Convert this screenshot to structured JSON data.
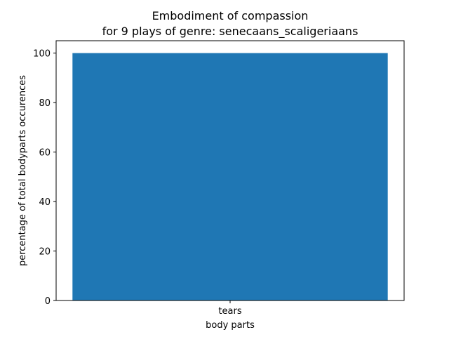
{
  "chart_data": {
    "type": "bar",
    "title_lines": [
      "Embodiment of compassion",
      "for 9 plays of genre: senecaans_scaligeriaans"
    ],
    "categories": [
      "tears"
    ],
    "series": [
      {
        "values": [
          100
        ]
      }
    ],
    "xlabel": "body parts",
    "ylabel": "percentage of total bodyparts occurences",
    "ylim": [
      0,
      105
    ],
    "yticks": [
      0,
      20,
      40,
      60,
      80,
      100
    ],
    "bar_color": "#1f77b4",
    "grid": false,
    "legend": "none"
  }
}
